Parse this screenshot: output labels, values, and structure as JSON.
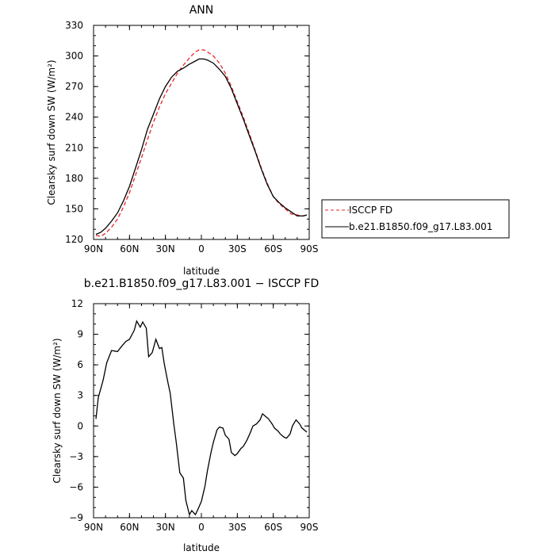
{
  "chart_data": [
    {
      "type": "line",
      "title": "ANN",
      "xlabel": "latitude",
      "ylabel": "Clearsky surf down SW (W/m²)",
      "x_tick_labels": [
        "90N",
        "60N",
        "30N",
        "0",
        "30S",
        "60S",
        "90S"
      ],
      "y_ticks": [
        120,
        150,
        180,
        210,
        240,
        270,
        300,
        330
      ],
      "xlim": [
        90,
        -90
      ],
      "ylim": [
        120,
        330
      ],
      "grid": false,
      "legend_position": "right",
      "series": [
        {
          "name": "ISCCP FD",
          "color": "#e8262a",
          "dash": "dashed",
          "x": [
            88,
            84,
            80,
            75,
            70,
            65,
            60,
            55,
            50,
            45,
            40,
            35,
            30,
            25,
            20,
            15,
            10,
            5,
            2,
            -2,
            -5,
            -10,
            -15,
            -20,
            -25,
            -30,
            -35,
            -40,
            -45,
            -50,
            -55,
            -60,
            -65,
            -70,
            -75,
            -80,
            -85,
            -88
          ],
          "y": [
            124,
            123,
            126,
            132,
            140,
            152,
            166,
            183,
            200,
            218,
            235,
            250,
            263,
            273,
            283,
            291,
            298,
            304,
            306,
            306,
            304,
            300,
            293,
            283,
            270,
            255,
            240,
            224,
            207,
            190,
            175,
            162,
            155,
            150,
            145,
            144,
            143,
            144
          ]
        },
        {
          "name": "b.e21.B1850.f09_g17.L83.001",
          "color": "#000000",
          "dash": "solid",
          "x": [
            88,
            84,
            80,
            75,
            70,
            65,
            60,
            55,
            50,
            45,
            40,
            35,
            30,
            25,
            20,
            15,
            10,
            5,
            2,
            -2,
            -5,
            -10,
            -15,
            -20,
            -25,
            -30,
            -35,
            -40,
            -45,
            -50,
            -55,
            -60,
            -65,
            -70,
            -75,
            -80,
            -85,
            -88
          ],
          "y": [
            125,
            127,
            131,
            138,
            146,
            158,
            172,
            190,
            208,
            228,
            243,
            258,
            270,
            279,
            285,
            288,
            292,
            295,
            297,
            297,
            296,
            293,
            287,
            280,
            268,
            253,
            238,
            222,
            206,
            189,
            174,
            162,
            156,
            151,
            147,
            143,
            143,
            144
          ]
        }
      ]
    },
    {
      "type": "line",
      "title": "b.e21.B1850.f09_g17.L83.001 − ISCCP FD",
      "xlabel": "latitude",
      "ylabel": "Clearsky surf down SW (W/m²)",
      "x_tick_labels": [
        "90N",
        "60N",
        "30N",
        "0",
        "30S",
        "60S",
        "90S"
      ],
      "y_ticks": [
        -9,
        -6,
        -3,
        0,
        3,
        6,
        9,
        12
      ],
      "xlim": [
        90,
        -90
      ],
      "ylim": [
        -9,
        12
      ],
      "grid": false,
      "series": [
        {
          "color": "#000000",
          "dash": "solid",
          "x": [
            88,
            86,
            82,
            79,
            75,
            70,
            66,
            63,
            60,
            56,
            54,
            51,
            49,
            46,
            44,
            41,
            38,
            35,
            33,
            31,
            28,
            26,
            23,
            21,
            18,
            15,
            13,
            10,
            8,
            5,
            3,
            0,
            -3,
            -5,
            -8,
            -10,
            -13,
            -15,
            -18,
            -20,
            -23,
            -25,
            -28,
            -30,
            -33,
            -35,
            -38,
            -41,
            -43,
            -46,
            -49,
            -51,
            -54,
            -56,
            -59,
            -61,
            -64,
            -66,
            -69,
            -71,
            -74,
            -76,
            -79,
            -82,
            -84,
            -87,
            -88
          ],
          "y": [
            0.7,
            2.8,
            4.5,
            6.2,
            7.4,
            7.3,
            7.9,
            8.3,
            8.5,
            9.4,
            10.3,
            9.7,
            10.2,
            9.6,
            6.8,
            7.2,
            8.5,
            7.6,
            7.7,
            6.1,
            4.3,
            3.2,
            0.2,
            -1.6,
            -4.6,
            -5.1,
            -7.3,
            -8.7,
            -8.3,
            -8.7,
            -8.2,
            -7.4,
            -5.9,
            -4.4,
            -2.6,
            -1.6,
            -0.4,
            -0.1,
            -0.2,
            -0.9,
            -1.3,
            -2.6,
            -2.9,
            -2.7,
            -2.2,
            -2.0,
            -1.4,
            -0.6,
            0.0,
            0.2,
            0.6,
            1.2,
            0.9,
            0.7,
            0.2,
            -0.2,
            -0.5,
            -0.8,
            -1.1,
            -1.2,
            -0.8,
            0.0,
            0.6,
            0.2,
            -0.2,
            -0.5,
            -0.6
          ]
        }
      ]
    }
  ]
}
